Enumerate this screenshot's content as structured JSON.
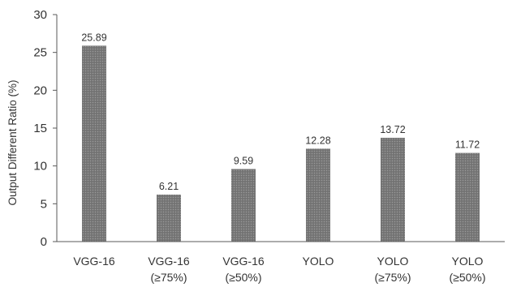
{
  "chart_data": {
    "type": "bar",
    "title": "",
    "xlabel": "",
    "ylabel": "Output Different Ratio (%)",
    "ylim": [
      0,
      30
    ],
    "yticks": [
      0,
      5,
      10,
      15,
      20,
      25,
      30
    ],
    "grid": false,
    "categories": [
      [
        "VGG-16"
      ],
      [
        "VGG-16",
        "(≥75%)"
      ],
      [
        "VGG-16",
        "(≥50%)"
      ],
      [
        "YOLO"
      ],
      [
        "YOLO",
        "(≥75%)"
      ],
      [
        "YOLO",
        "(≥50%)"
      ]
    ],
    "values": [
      25.89,
      6.21,
      9.59,
      12.28,
      13.72,
      11.72
    ],
    "data_labels": [
      "25.89",
      "6.21",
      "9.59",
      "12.28",
      "13.72",
      "11.72"
    ],
    "bar_color": "#7f7f7f",
    "bar_pattern": "dotted-gray"
  }
}
